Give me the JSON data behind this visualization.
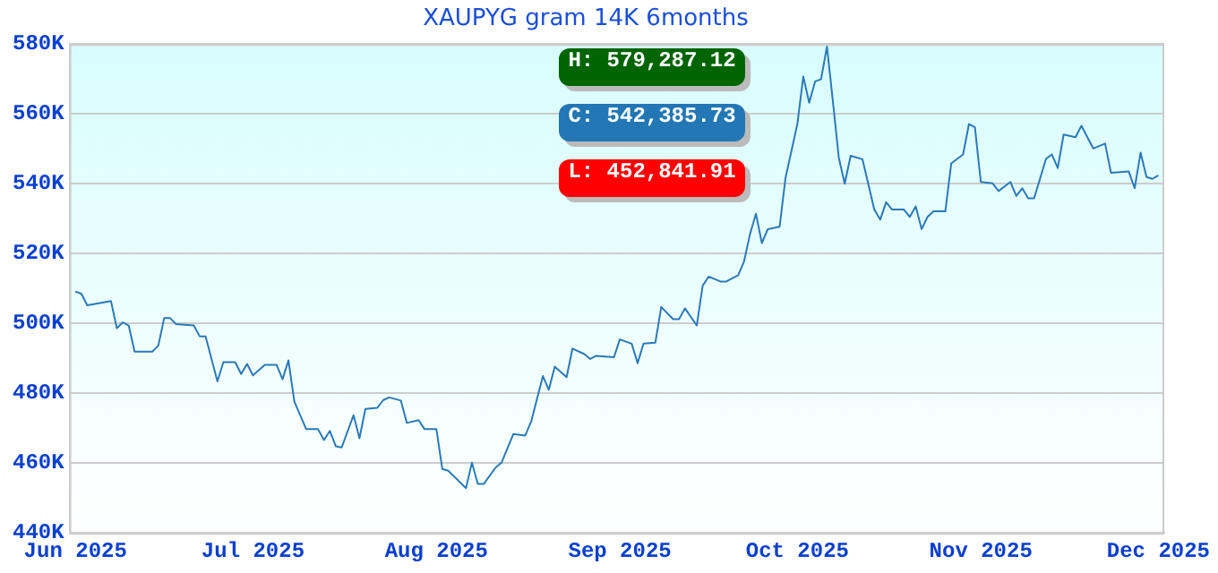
{
  "chart_data": {
    "type": "line",
    "title": "XAUPYG gram 14K 6months",
    "x": [
      "2025-06-01",
      "2025-06-02",
      "2025-06-03",
      "2025-06-07",
      "2025-06-08",
      "2025-06-09",
      "2025-06-10",
      "2025-06-11",
      "2025-06-14",
      "2025-06-15",
      "2025-06-16",
      "2025-06-17",
      "2025-06-18",
      "2025-06-21",
      "2025-06-22",
      "2025-06-23",
      "2025-06-25",
      "2025-06-26",
      "2025-06-28",
      "2025-06-29",
      "2025-06-30",
      "2025-07-01",
      "2025-07-03",
      "2025-07-05",
      "2025-07-06",
      "2025-07-07",
      "2025-07-08",
      "2025-07-10",
      "2025-07-12",
      "2025-07-13",
      "2025-07-14",
      "2025-07-15",
      "2025-07-16",
      "2025-07-18",
      "2025-07-19",
      "2025-07-20",
      "2025-07-22",
      "2025-07-23",
      "2025-07-24",
      "2025-07-26",
      "2025-07-27",
      "2025-07-29",
      "2025-07-30",
      "2025-08-01",
      "2025-08-02",
      "2025-08-03",
      "2025-08-06",
      "2025-08-07",
      "2025-08-08",
      "2025-08-09",
      "2025-08-11",
      "2025-08-12",
      "2025-08-14",
      "2025-08-16",
      "2025-08-17",
      "2025-08-19",
      "2025-08-20",
      "2025-08-21",
      "2025-08-23",
      "2025-08-24",
      "2025-08-26",
      "2025-08-27",
      "2025-08-28",
      "2025-08-31",
      "2025-09-01",
      "2025-09-03",
      "2025-09-04",
      "2025-09-05",
      "2025-09-07",
      "2025-09-08",
      "2025-09-10",
      "2025-09-11",
      "2025-09-12",
      "2025-09-14",
      "2025-09-15",
      "2025-09-16",
      "2025-09-18",
      "2025-09-19",
      "2025-09-21",
      "2025-09-22",
      "2025-09-23",
      "2025-09-24",
      "2025-09-25",
      "2025-09-26",
      "2025-09-28",
      "2025-09-29",
      "2025-10-01",
      "2025-10-02",
      "2025-10-03",
      "2025-10-04",
      "2025-10-05",
      "2025-10-06",
      "2025-10-07",
      "2025-10-08",
      "2025-10-09",
      "2025-10-10",
      "2025-10-12",
      "2025-10-14",
      "2025-10-15",
      "2025-10-16",
      "2025-10-17",
      "2025-10-19",
      "2025-10-20",
      "2025-10-21",
      "2025-10-22",
      "2025-10-23",
      "2025-10-24",
      "2025-10-26",
      "2025-10-27",
      "2025-10-29",
      "2025-10-30",
      "2025-10-31",
      "2025-11-01",
      "2025-11-03",
      "2025-11-04",
      "2025-11-06",
      "2025-11-07",
      "2025-11-08",
      "2025-11-09",
      "2025-11-10",
      "2025-11-11",
      "2025-11-12",
      "2025-11-13",
      "2025-11-14",
      "2025-11-15",
      "2025-11-17",
      "2025-11-18",
      "2025-11-20",
      "2025-11-22",
      "2025-11-23",
      "2025-11-26",
      "2025-11-27",
      "2025-11-28",
      "2025-11-29",
      "2025-11-30",
      "2025-12-01"
    ],
    "series": [
      {
        "color": "#2a7ab8",
        "values": [
          509100,
          508500,
          505200,
          506400,
          498600,
          500300,
          499400,
          491900,
          491900,
          493600,
          501500,
          501500,
          499800,
          499400,
          496300,
          496300,
          483400,
          488900,
          488900,
          485500,
          488400,
          485100,
          488100,
          488100,
          484000,
          489400,
          477600,
          469700,
          469700,
          466600,
          469200,
          464800,
          464500,
          473700,
          467100,
          475500,
          475800,
          478000,
          478800,
          477900,
          471500,
          472300,
          469700,
          469700,
          458300,
          457800,
          452800,
          460100,
          454000,
          454000,
          458700,
          460100,
          468300,
          467900,
          471800,
          484900,
          481000,
          487600,
          484600,
          492800,
          491200,
          489800,
          490700,
          490300,
          495400,
          494200,
          488600,
          494200,
          494500,
          504700,
          501200,
          501200,
          504300,
          499400,
          510800,
          513400,
          512000,
          512000,
          513800,
          517800,
          525600,
          531400,
          523000,
          527000,
          527700,
          541700,
          557100,
          570700,
          563200,
          569300,
          569900,
          579300,
          563600,
          547500,
          540000,
          548000,
          547000,
          532600,
          529700,
          534700,
          532600,
          532600,
          530500,
          533500,
          527000,
          530500,
          532100,
          532100,
          545800,
          548400,
          557100,
          556200,
          540500,
          540100,
          537900,
          540500,
          536500,
          538700,
          535800,
          535800,
          541400,
          547100,
          548400,
          544500,
          554100,
          553300,
          556600,
          550100,
          551500,
          543100,
          543500,
          538700,
          548900,
          541900,
          541400,
          542400
        ]
      }
    ],
    "xlim": [
      "2025-05-31",
      "2025-12-02"
    ],
    "xticks": [
      {
        "value": "2025-06-01",
        "label": "Jun 2025"
      },
      {
        "value": "2025-07-01",
        "label": "Jul 2025"
      },
      {
        "value": "2025-08-01",
        "label": "Aug 2025"
      },
      {
        "value": "2025-09-01",
        "label": "Sep 2025"
      },
      {
        "value": "2025-10-01",
        "label": "Oct 2025"
      },
      {
        "value": "2025-11-01",
        "label": "Nov 2025"
      },
      {
        "value": "2025-12-01",
        "label": "Dec 2025"
      }
    ],
    "ylim": [
      440000,
      580000
    ],
    "yticks": [
      {
        "value": 440000,
        "label": "440K"
      },
      {
        "value": 460000,
        "label": "460K"
      },
      {
        "value": 480000,
        "label": "480K"
      },
      {
        "value": 500000,
        "label": "500K"
      },
      {
        "value": 520000,
        "label": "520K"
      },
      {
        "value": 540000,
        "label": "540K"
      },
      {
        "value": 560000,
        "label": "560K"
      },
      {
        "value": 580000,
        "label": "580K"
      }
    ],
    "annotations": [
      "H: 579,287.12",
      "C: 542,385.73",
      "L: 452,841.91"
    ],
    "grid": "y",
    "legend": false,
    "marker": "none",
    "line_style": "solid"
  }
}
